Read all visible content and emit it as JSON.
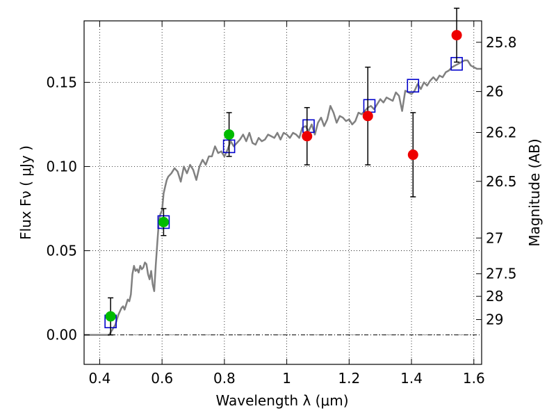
{
  "chart_data": {
    "type": "scatter",
    "title": "",
    "xlabel": "Wavelength  λ (μm)",
    "ylabel": "Flux  Fν  ( μJy )",
    "y2label": "Magnitude (AB)",
    "xlim": [
      0.35,
      1.625
    ],
    "ylim": [
      -0.0175,
      0.1865
    ],
    "grid": true,
    "xticks": [
      0.4,
      0.6,
      0.8,
      1.0,
      1.2,
      1.4,
      1.6
    ],
    "xtick_labels": [
      "0.4",
      "0.6",
      "0.8",
      "1",
      "1.2",
      "1.4",
      "1.6"
    ],
    "yticks": [
      0.0,
      0.05,
      0.1,
      0.15
    ],
    "ytick_labels": [
      "0.00",
      "0.05",
      "0.10",
      "0.15"
    ],
    "mag_ticks": [
      25.8,
      26,
      26.2,
      26.5,
      27,
      27.5,
      28,
      29
    ],
    "mag_tick_labels": [
      "25.8",
      "26",
      "26.2",
      "26.5",
      "27",
      "27.5",
      "28",
      "29"
    ],
    "colors": {
      "sed": "#808080",
      "model_box": "#0000cc",
      "green_points": "#00bb00",
      "red_points": "#ee0000",
      "errorbar": "#000000",
      "grid": "#000000"
    },
    "series": [
      {
        "type": "line",
        "x": [
          0.35,
          0.38,
          0.4,
          0.42,
          0.43,
          0.44,
          0.45,
          0.455,
          0.46,
          0.465,
          0.47,
          0.475,
          0.48,
          0.485,
          0.49,
          0.495,
          0.5,
          0.505,
          0.51,
          0.515,
          0.52,
          0.525,
          0.53,
          0.535,
          0.54,
          0.545,
          0.55,
          0.555,
          0.56,
          0.565,
          0.57,
          0.575,
          0.58,
          0.585,
          0.59,
          0.595,
          0.6,
          0.605,
          0.61,
          0.615,
          0.62,
          0.63,
          0.64,
          0.65,
          0.66,
          0.67,
          0.68,
          0.69,
          0.7,
          0.71,
          0.72,
          0.73,
          0.74,
          0.75,
          0.76,
          0.77,
          0.78,
          0.79,
          0.8,
          0.81,
          0.82,
          0.83,
          0.84,
          0.85,
          0.86,
          0.87,
          0.88,
          0.89,
          0.9,
          0.91,
          0.92,
          0.93,
          0.94,
          0.95,
          0.96,
          0.97,
          0.98,
          0.99,
          1.0,
          1.01,
          1.02,
          1.03,
          1.04,
          1.05,
          1.06,
          1.07,
          1.08,
          1.09,
          1.1,
          1.11,
          1.12,
          1.13,
          1.14,
          1.15,
          1.16,
          1.17,
          1.18,
          1.19,
          1.2,
          1.21,
          1.22,
          1.23,
          1.24,
          1.25,
          1.26,
          1.27,
          1.28,
          1.29,
          1.3,
          1.31,
          1.32,
          1.33,
          1.34,
          1.35,
          1.36,
          1.37,
          1.38,
          1.39,
          1.4,
          1.41,
          1.42,
          1.43,
          1.44,
          1.45,
          1.46,
          1.47,
          1.48,
          1.49,
          1.5,
          1.51,
          1.52,
          1.53,
          1.54,
          1.55,
          1.56,
          1.57,
          1.58,
          1.59,
          1.6,
          1.61,
          1.625
        ],
        "y": [
          0.0,
          0.0,
          0.0,
          0.0,
          0.0,
          0.003,
          0.006,
          0.009,
          0.012,
          0.014,
          0.016,
          0.017,
          0.015,
          0.018,
          0.021,
          0.02,
          0.024,
          0.036,
          0.041,
          0.038,
          0.039,
          0.037,
          0.041,
          0.039,
          0.04,
          0.043,
          0.042,
          0.036,
          0.033,
          0.038,
          0.03,
          0.026,
          0.042,
          0.055,
          0.068,
          0.072,
          0.074,
          0.084,
          0.088,
          0.092,
          0.094,
          0.096,
          0.099,
          0.097,
          0.091,
          0.1,
          0.096,
          0.101,
          0.098,
          0.092,
          0.1,
          0.104,
          0.101,
          0.106,
          0.106,
          0.112,
          0.108,
          0.109,
          0.106,
          0.11,
          0.115,
          0.112,
          0.114,
          0.116,
          0.119,
          0.115,
          0.12,
          0.114,
          0.113,
          0.117,
          0.115,
          0.116,
          0.119,
          0.118,
          0.117,
          0.12,
          0.116,
          0.12,
          0.119,
          0.117,
          0.12,
          0.119,
          0.117,
          0.123,
          0.124,
          0.121,
          0.125,
          0.119,
          0.126,
          0.129,
          0.124,
          0.128,
          0.136,
          0.132,
          0.126,
          0.13,
          0.129,
          0.127,
          0.128,
          0.125,
          0.127,
          0.132,
          0.131,
          0.133,
          0.135,
          0.136,
          0.134,
          0.137,
          0.14,
          0.138,
          0.141,
          0.14,
          0.139,
          0.144,
          0.142,
          0.133,
          0.145,
          0.144,
          0.143,
          0.145,
          0.149,
          0.146,
          0.15,
          0.148,
          0.151,
          0.153,
          0.151,
          0.154,
          0.153,
          0.156,
          0.157,
          0.159,
          0.16,
          0.161,
          0.162,
          0.163,
          0.163,
          0.16,
          0.159,
          0.158,
          0.158
        ]
      },
      {
        "type": "scatter",
        "marker": "square",
        "x": [
          0.435,
          0.605,
          0.815,
          1.07,
          1.265,
          1.405,
          1.545
        ],
        "y": [
          0.008,
          0.067,
          0.112,
          0.124,
          0.136,
          0.148,
          0.161
        ]
      },
      {
        "type": "scatter",
        "marker": "circle",
        "x": [
          0.435,
          0.605,
          0.815
        ],
        "y": [
          0.011,
          0.067,
          0.119
        ],
        "yerr": [
          0.011,
          0.008,
          0.013
        ]
      },
      {
        "type": "scatter",
        "marker": "circle",
        "x": [
          1.065,
          1.26,
          1.405,
          1.545
        ],
        "y": [
          0.118,
          0.13,
          0.107,
          0.178
        ],
        "yerr": [
          0.017,
          0.029,
          0.025,
          0.016
        ]
      }
    ]
  }
}
